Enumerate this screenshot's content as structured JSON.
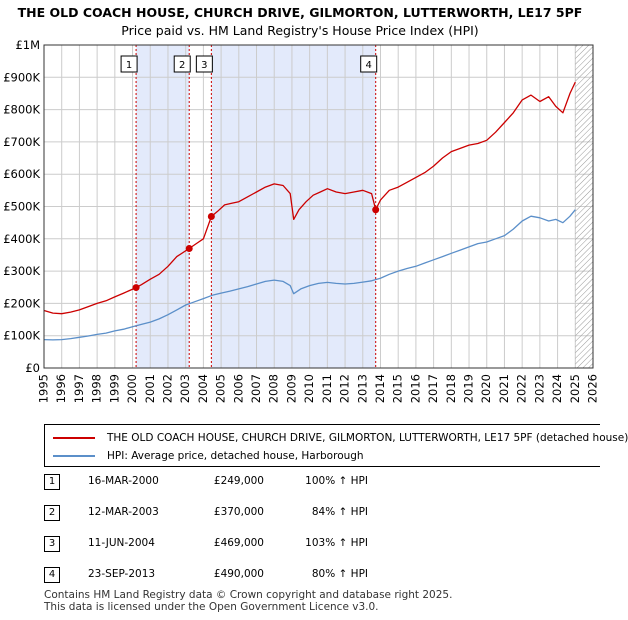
{
  "title_line1": "THE OLD COACH HOUSE, CHURCH DRIVE, GILMORTON, LUTTERWORTH, LE17 5PF",
  "title_line2": "Price paid vs. HM Land Registry's House Price Index (HPI)",
  "colors": {
    "property": "#cc0000",
    "hpi": "#5b8fc9",
    "highlight": "#e3eafb",
    "grid": "#cccccc"
  },
  "legend": {
    "property_label": "THE OLD COACH HOUSE, CHURCH DRIVE, GILMORTON, LUTTERWORTH, LE17 5PF (detached house)",
    "hpi_label": "HPI: Average price, detached house, Harborough"
  },
  "transactions": [
    {
      "num": "1",
      "date": "16-MAR-2000",
      "price": "£249,000",
      "hpi": "100% ↑ HPI"
    },
    {
      "num": "2",
      "date": "12-MAR-2003",
      "price": "£370,000",
      "hpi": "84% ↑ HPI"
    },
    {
      "num": "3",
      "date": "11-JUN-2004",
      "price": "£469,000",
      "hpi": "103% ↑ HPI"
    },
    {
      "num": "4",
      "date": "23-SEP-2013",
      "price": "£490,000",
      "hpi": "80% ↑ HPI"
    }
  ],
  "footer_line1": "Contains HM Land Registry data © Crown copyright and database right 2025.",
  "footer_line2": "This data is licensed under the Open Government Licence v3.0.",
  "chart_data": {
    "type": "line",
    "title": "THE OLD COACH HOUSE, CHURCH DRIVE, GILMORTON, LUTTERWORTH, LE17 5PF",
    "subtitle": "Price paid vs. HM Land Registry's House Price Index (HPI)",
    "xlim": [
      1995,
      2026
    ],
    "ylim": [
      0,
      1000000
    ],
    "yticks": [
      0,
      100000,
      200000,
      300000,
      400000,
      500000,
      600000,
      700000,
      800000,
      900000,
      1000000
    ],
    "ytick_labels": [
      "£0",
      "£100K",
      "£200K",
      "£300K",
      "£400K",
      "£500K",
      "£600K",
      "£700K",
      "£800K",
      "£900K",
      "£1M"
    ],
    "xticks": [
      1995,
      1996,
      1997,
      1998,
      1999,
      2000,
      2001,
      2002,
      2003,
      2004,
      2005,
      2006,
      2007,
      2008,
      2009,
      2010,
      2011,
      2012,
      2013,
      2014,
      2015,
      2016,
      2017,
      2018,
      2019,
      2020,
      2021,
      2022,
      2023,
      2024,
      2025,
      2026
    ],
    "xtick_labels": [
      "1995",
      "1996",
      "1997",
      "1998",
      "1999",
      "2000",
      "2001",
      "2002",
      "2003",
      "2004",
      "2005",
      "2006",
      "2007",
      "2008",
      "2009",
      "2010",
      "2011",
      "2012",
      "2013",
      "2014",
      "2015",
      "2016",
      "2017",
      "2018",
      "2019",
      "2020",
      "2021",
      "2022",
      "2023",
      "2024",
      "2025",
      "2026"
    ],
    "grid": true,
    "hatched_from": 2025.0,
    "highlight_spans": [
      [
        2000.2,
        2003.2
      ],
      [
        2004.45,
        2013.73
      ]
    ],
    "events": [
      {
        "label": "1",
        "x": 2000.2,
        "y": 249000
      },
      {
        "label": "2",
        "x": 2003.2,
        "y": 370000
      },
      {
        "label": "3",
        "x": 2004.45,
        "y": 469000
      },
      {
        "label": "4",
        "x": 2013.73,
        "y": 490000
      }
    ],
    "series": [
      {
        "name": "THE OLD COACH HOUSE, CHURCH DRIVE, GILMORTON, LUTTERWORTH, LE17 5PF (detached house)",
        "x": [
          1995.0,
          1995.5,
          1996.0,
          1996.5,
          1997.0,
          1997.5,
          1998.0,
          1998.5,
          1999.0,
          1999.5,
          2000.2,
          2000.5,
          2001.0,
          2001.5,
          2002.0,
          2002.5,
          2003.2,
          2003.6,
          2004.0,
          2004.45,
          2004.8,
          2005.2,
          2005.6,
          2006.0,
          2006.5,
          2007.0,
          2007.5,
          2008.0,
          2008.5,
          2008.9,
          2009.1,
          2009.4,
          2009.8,
          2010.2,
          2010.6,
          2011.0,
          2011.5,
          2012.0,
          2012.5,
          2013.0,
          2013.5,
          2013.73,
          2014.0,
          2014.5,
          2015.0,
          2015.5,
          2016.0,
          2016.5,
          2017.0,
          2017.5,
          2018.0,
          2018.5,
          2019.0,
          2019.5,
          2020.0,
          2020.5,
          2021.0,
          2021.5,
          2022.0,
          2022.5,
          2023.0,
          2023.5,
          2023.9,
          2024.3,
          2024.7,
          2025.0
        ],
        "y": [
          178000,
          170000,
          168000,
          173000,
          180000,
          190000,
          200000,
          208000,
          220000,
          232000,
          249000,
          258000,
          275000,
          290000,
          315000,
          345000,
          370000,
          385000,
          400000,
          469000,
          485000,
          505000,
          510000,
          515000,
          530000,
          545000,
          560000,
          570000,
          565000,
          540000,
          460000,
          490000,
          515000,
          535000,
          545000,
          555000,
          545000,
          540000,
          545000,
          550000,
          540000,
          490000,
          520000,
          550000,
          560000,
          575000,
          590000,
          605000,
          625000,
          650000,
          670000,
          680000,
          690000,
          695000,
          705000,
          730000,
          760000,
          790000,
          830000,
          845000,
          825000,
          840000,
          810000,
          790000,
          850000,
          885000
        ]
      },
      {
        "name": "HPI: Average price, detached house, Harborough",
        "x": [
          1995.0,
          1995.5,
          1996.0,
          1996.5,
          1997.0,
          1997.5,
          1998.0,
          1998.5,
          1999.0,
          1999.5,
          2000.0,
          2000.5,
          2001.0,
          2001.5,
          2002.0,
          2002.5,
          2003.0,
          2003.5,
          2004.0,
          2004.5,
          2005.0,
          2005.5,
          2006.0,
          2006.5,
          2007.0,
          2007.5,
          2008.0,
          2008.5,
          2008.9,
          2009.1,
          2009.5,
          2010.0,
          2010.5,
          2011.0,
          2011.5,
          2012.0,
          2012.5,
          2013.0,
          2013.5,
          2014.0,
          2014.5,
          2015.0,
          2015.5,
          2016.0,
          2016.5,
          2017.0,
          2017.5,
          2018.0,
          2018.5,
          2019.0,
          2019.5,
          2020.0,
          2020.5,
          2021.0,
          2021.5,
          2022.0,
          2022.5,
          2023.0,
          2023.5,
          2023.9,
          2024.3,
          2024.7,
          2025.0
        ],
        "y": [
          88000,
          87000,
          88000,
          91000,
          95000,
          99000,
          104000,
          108000,
          115000,
          120000,
          128000,
          135000,
          142000,
          152000,
          165000,
          180000,
          195000,
          205000,
          215000,
          225000,
          232000,
          238000,
          245000,
          252000,
          260000,
          268000,
          272000,
          268000,
          255000,
          230000,
          245000,
          255000,
          262000,
          265000,
          262000,
          260000,
          262000,
          266000,
          270000,
          278000,
          290000,
          300000,
          308000,
          315000,
          325000,
          335000,
          345000,
          355000,
          365000,
          375000,
          385000,
          390000,
          400000,
          410000,
          430000,
          455000,
          470000,
          465000,
          455000,
          460000,
          450000,
          470000,
          490000
        ]
      }
    ]
  }
}
